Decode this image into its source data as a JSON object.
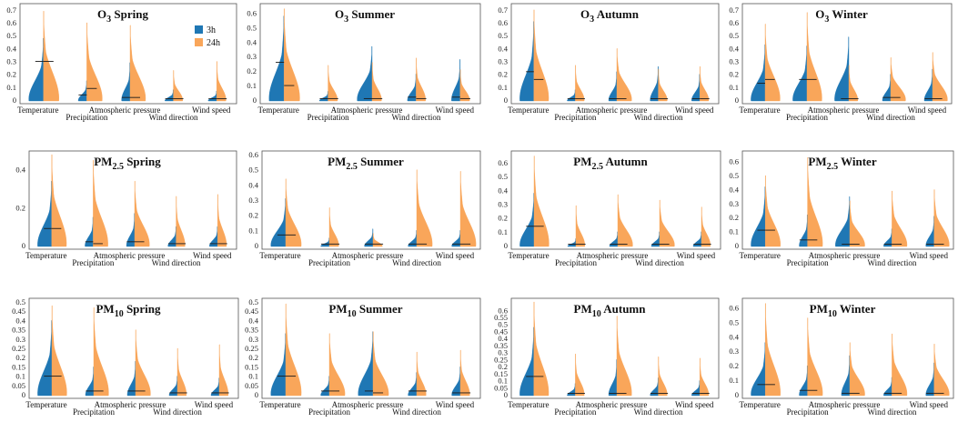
{
  "colors": {
    "h3": "#1f77b4",
    "h24": "#f9a65a",
    "median": "#1a1a1a",
    "frame": "#555555"
  },
  "categories": [
    "Temperature",
    "Precipitation",
    "Atmospheric pressure",
    "Wind direction",
    "Wind speed"
  ],
  "chart_data": [
    {
      "type": "violin",
      "title_main": "O",
      "title_sub": "3",
      "title_season": "Spring",
      "legend": [
        "3h",
        "24h"
      ],
      "yticks": [
        "0",
        "0.1",
        "0.2",
        "0.3",
        "0.4",
        "0.5",
        "0.6",
        "0.7"
      ],
      "ylim": [
        0,
        0.72
      ],
      "series": [
        {
          "name": "3h",
          "max": [
            0.48,
            0.15,
            0.29,
            0.08,
            0.07
          ],
          "median": [
            0.3,
            0.04,
            0.02,
            0.01,
            0.01
          ]
        },
        {
          "name": "24h",
          "max": [
            0.69,
            0.6,
            0.58,
            0.23,
            0.3
          ],
          "median": [
            0.3,
            0.09,
            0.02,
            0.01,
            0.01
          ]
        }
      ]
    },
    {
      "type": "violin",
      "title_main": "O",
      "title_sub": "3",
      "title_season": "Summer",
      "legend": [],
      "yticks": [
        "0",
        "0.1",
        "0.2",
        "0.3",
        "0.4",
        "0.5",
        "0.6"
      ],
      "ylim": [
        0,
        0.64
      ],
      "series": [
        {
          "name": "3h",
          "max": [
            0.58,
            0.06,
            0.37,
            0.18,
            0.28
          ],
          "median": [
            0.26,
            0.01,
            0.01,
            0.02,
            0.02
          ]
        },
        {
          "name": "24h",
          "max": [
            0.63,
            0.24,
            0.26,
            0.29,
            0.21
          ],
          "median": [
            0.1,
            0.01,
            0.01,
            0.01,
            0.01
          ]
        }
      ]
    },
    {
      "type": "violin",
      "title_main": "O",
      "title_sub": "3",
      "title_season": "Autumn",
      "legend": [],
      "yticks": [
        "0",
        "0.1",
        "0.2",
        "0.3",
        "0.4",
        "0.5",
        "0.6",
        "0.7"
      ],
      "ylim": [
        0,
        0.72
      ],
      "series": [
        {
          "name": "3h",
          "max": [
            0.61,
            0.08,
            0.22,
            0.26,
            0.2
          ],
          "median": [
            0.22,
            0.01,
            0.01,
            0.01,
            0.01
          ]
        },
        {
          "name": "24h",
          "max": [
            0.7,
            0.27,
            0.4,
            0.24,
            0.26
          ],
          "median": [
            0.16,
            0.01,
            0.01,
            0.01,
            0.01
          ]
        }
      ]
    },
    {
      "type": "violin",
      "title_main": "O",
      "title_sub": "3",
      "title_season": "Winter",
      "legend": [],
      "yticks": [
        "0",
        "0.1",
        "0.2",
        "0.3",
        "0.4",
        "0.5",
        "0.6",
        "0.7"
      ],
      "ylim": [
        0,
        0.72
      ],
      "series": [
        {
          "name": "3h",
          "max": [
            0.43,
            0.42,
            0.49,
            0.2,
            0.24
          ],
          "median": [
            0.13,
            0.16,
            0.01,
            0.02,
            0.01
          ]
        },
        {
          "name": "24h",
          "max": [
            0.59,
            0.68,
            0.27,
            0.33,
            0.37
          ],
          "median": [
            0.16,
            0.16,
            0.01,
            0.02,
            0.01
          ]
        }
      ]
    },
    {
      "type": "violin",
      "title_main": "PM",
      "title_sub": "2.5",
      "title_season": "Spring",
      "legend": [],
      "yticks": [
        "0",
        "0.2",
        "0.4"
      ],
      "ylim": [
        0,
        0.48
      ],
      "series": [
        {
          "name": "3h",
          "max": [
            0.34,
            0.15,
            0.17,
            0.1,
            0.1
          ],
          "median": [
            0.09,
            0.02,
            0.02,
            0.01,
            0.01
          ]
        },
        {
          "name": "24h",
          "max": [
            0.48,
            0.45,
            0.34,
            0.26,
            0.27
          ],
          "median": [
            0.09,
            0.01,
            0.02,
            0.01,
            0.01
          ]
        }
      ]
    },
    {
      "type": "violin",
      "title_main": "PM",
      "title_sub": "2.5",
      "title_season": "Summer",
      "legend": [],
      "yticks": [
        "0",
        "0.1",
        "0.2",
        "0.3",
        "0.4",
        "0.5",
        "0.6"
      ],
      "ylim": [
        0,
        0.6
      ],
      "series": [
        {
          "name": "3h",
          "max": [
            0.31,
            0.05,
            0.11,
            0.1,
            0.1
          ],
          "median": [
            0.07,
            0.01,
            0.01,
            0.01,
            0.01
          ]
        },
        {
          "name": "24h",
          "max": [
            0.44,
            0.25,
            0.08,
            0.5,
            0.49
          ],
          "median": [
            0.07,
            0.01,
            0.01,
            0.01,
            0.01
          ]
        }
      ]
    },
    {
      "type": "violin",
      "title_main": "PM",
      "title_sub": "2.5",
      "title_season": "Autumn",
      "legend": [],
      "yticks": [
        "0",
        "0.1",
        "0.2",
        "0.3",
        "0.4",
        "0.5",
        "0.6"
      ],
      "ylim": [
        0,
        0.66
      ],
      "series": [
        {
          "name": "3h",
          "max": [
            0.38,
            0.05,
            0.1,
            0.1,
            0.1
          ],
          "median": [
            0.14,
            0.01,
            0.01,
            0.01,
            0.01
          ]
        },
        {
          "name": "24h",
          "max": [
            0.65,
            0.29,
            0.37,
            0.33,
            0.28
          ],
          "median": [
            0.14,
            0.01,
            0.01,
            0.01,
            0.01
          ]
        }
      ]
    },
    {
      "type": "violin",
      "title_main": "PM",
      "title_sub": "2.5",
      "title_season": "Winter",
      "legend": [],
      "yticks": [
        "0",
        "0.1",
        "0.2",
        "0.3",
        "0.4",
        "0.5",
        "0.6"
      ],
      "ylim": [
        0,
        0.65
      ],
      "series": [
        {
          "name": "3h",
          "max": [
            0.42,
            0.22,
            0.35,
            0.12,
            0.21
          ],
          "median": [
            0.11,
            0.04,
            0.01,
            0.01,
            0.01
          ]
        },
        {
          "name": "24h",
          "max": [
            0.5,
            0.63,
            0.32,
            0.39,
            0.4
          ],
          "median": [
            0.11,
            0.04,
            0.01,
            0.01,
            0.01
          ]
        }
      ]
    },
    {
      "type": "violin",
      "title_main": "PM",
      "title_sub": "10",
      "title_season": "Spring",
      "legend": [],
      "yticks": [
        "0",
        "0.05",
        "0.1",
        "0.15",
        "0.2",
        "0.25",
        "0.3",
        "0.35",
        "0.4",
        "0.45",
        "0.5"
      ],
      "ylim": [
        0,
        0.5
      ],
      "series": [
        {
          "name": "3h",
          "max": [
            0.4,
            0.15,
            0.18,
            0.1,
            0.09
          ],
          "median": [
            0.1,
            0.02,
            0.02,
            0.01,
            0.01
          ]
        },
        {
          "name": "24h",
          "max": [
            0.48,
            0.47,
            0.35,
            0.25,
            0.27
          ],
          "median": [
            0.1,
            0.02,
            0.02,
            0.01,
            0.01
          ]
        }
      ]
    },
    {
      "type": "violin",
      "title_main": "PM",
      "title_sub": "10",
      "title_season": "Summer",
      "legend": [],
      "yticks": [
        "0",
        "0.05",
        "0.1",
        "0.15",
        "0.2",
        "0.25",
        "0.3",
        "0.35",
        "0.4",
        "0.45",
        "0.5"
      ],
      "ylim": [
        0,
        0.5
      ],
      "series": [
        {
          "name": "3h",
          "max": [
            0.33,
            0.1,
            0.34,
            0.12,
            0.15
          ],
          "median": [
            0.1,
            0.02,
            0.02,
            0.02,
            0.01
          ]
        },
        {
          "name": "24h",
          "max": [
            0.49,
            0.33,
            0.34,
            0.23,
            0.24
          ],
          "median": [
            0.1,
            0.02,
            0.01,
            0.02,
            0.01
          ]
        }
      ]
    },
    {
      "type": "violin",
      "title_main": "PM",
      "title_sub": "10",
      "title_season": "Autumn",
      "legend": [],
      "yticks": [
        "0",
        "0.05",
        "0.1",
        "0.15",
        "0.2",
        "0.25",
        "0.3",
        "0.35",
        "0.4",
        "0.45",
        "0.5",
        "0.55",
        "0.6"
      ],
      "ylim": [
        0,
        0.66
      ],
      "series": [
        {
          "name": "3h",
          "max": [
            0.48,
            0.08,
            0.25,
            0.12,
            0.1
          ],
          "median": [
            0.13,
            0.01,
            0.01,
            0.01,
            0.01
          ]
        },
        {
          "name": "24h",
          "max": [
            0.66,
            0.29,
            0.56,
            0.27,
            0.26
          ],
          "median": [
            0.13,
            0.01,
            0.01,
            0.01,
            0.01
          ]
        }
      ]
    },
    {
      "type": "violin",
      "title_main": "PM",
      "title_sub": "10",
      "title_season": "Winter",
      "legend": [],
      "yticks": [
        "0",
        "0.1",
        "0.2",
        "0.3",
        "0.4",
        "0.5",
        "0.6"
      ],
      "ylim": [
        0,
        0.64
      ],
      "series": [
        {
          "name": "3h",
          "max": [
            0.36,
            0.2,
            0.27,
            0.12,
            0.22
          ],
          "median": [
            0.07,
            0.03,
            0.01,
            0.01,
            0.01
          ]
        },
        {
          "name": "24h",
          "max": [
            0.63,
            0.53,
            0.36,
            0.42,
            0.35
          ],
          "median": [
            0.07,
            0.03,
            0.01,
            0.01,
            0.01
          ]
        }
      ]
    }
  ]
}
